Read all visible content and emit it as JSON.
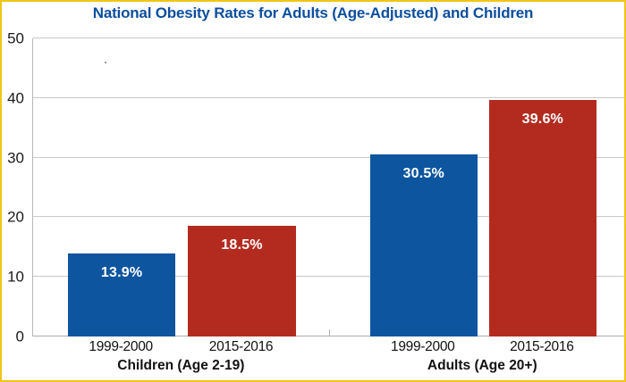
{
  "chart_data": {
    "type": "bar",
    "title": "National Obesity Rates for Adults (Age-Adjusted) and Children",
    "categories": [
      "Children (Age 2-19)",
      "Adults (Age 20+)"
    ],
    "series": [
      {
        "name": "1999-2000",
        "color": "#0D559F",
        "values": [
          13.9,
          30.5
        ],
        "value_labels": [
          "13.9%",
          "30.5%"
        ]
      },
      {
        "name": "2015-2016",
        "color": "#B32B1F",
        "values": [
          18.5,
          39.6
        ],
        "value_labels": [
          "18.5%",
          "39.6%"
        ]
      }
    ],
    "x_tick_labels": [
      "1999-2000",
      "2015-2016",
      "1999-2000",
      "2015-2016"
    ],
    "ylim": [
      0,
      50
    ],
    "yticks": [
      0,
      10,
      20,
      30,
      40,
      50
    ],
    "grid": true,
    "legend_position": "none",
    "value_label_color": "#FFFFFF"
  },
  "colors": {
    "frame_border": "#F0C515",
    "title": "#0C4E9E",
    "grid_line": "#C9C9C9",
    "axis_line": "#ADADAD",
    "plot_border": "#B8B8B8",
    "tick_text": "#1A1A1A",
    "background": "#FFFFFF"
  }
}
